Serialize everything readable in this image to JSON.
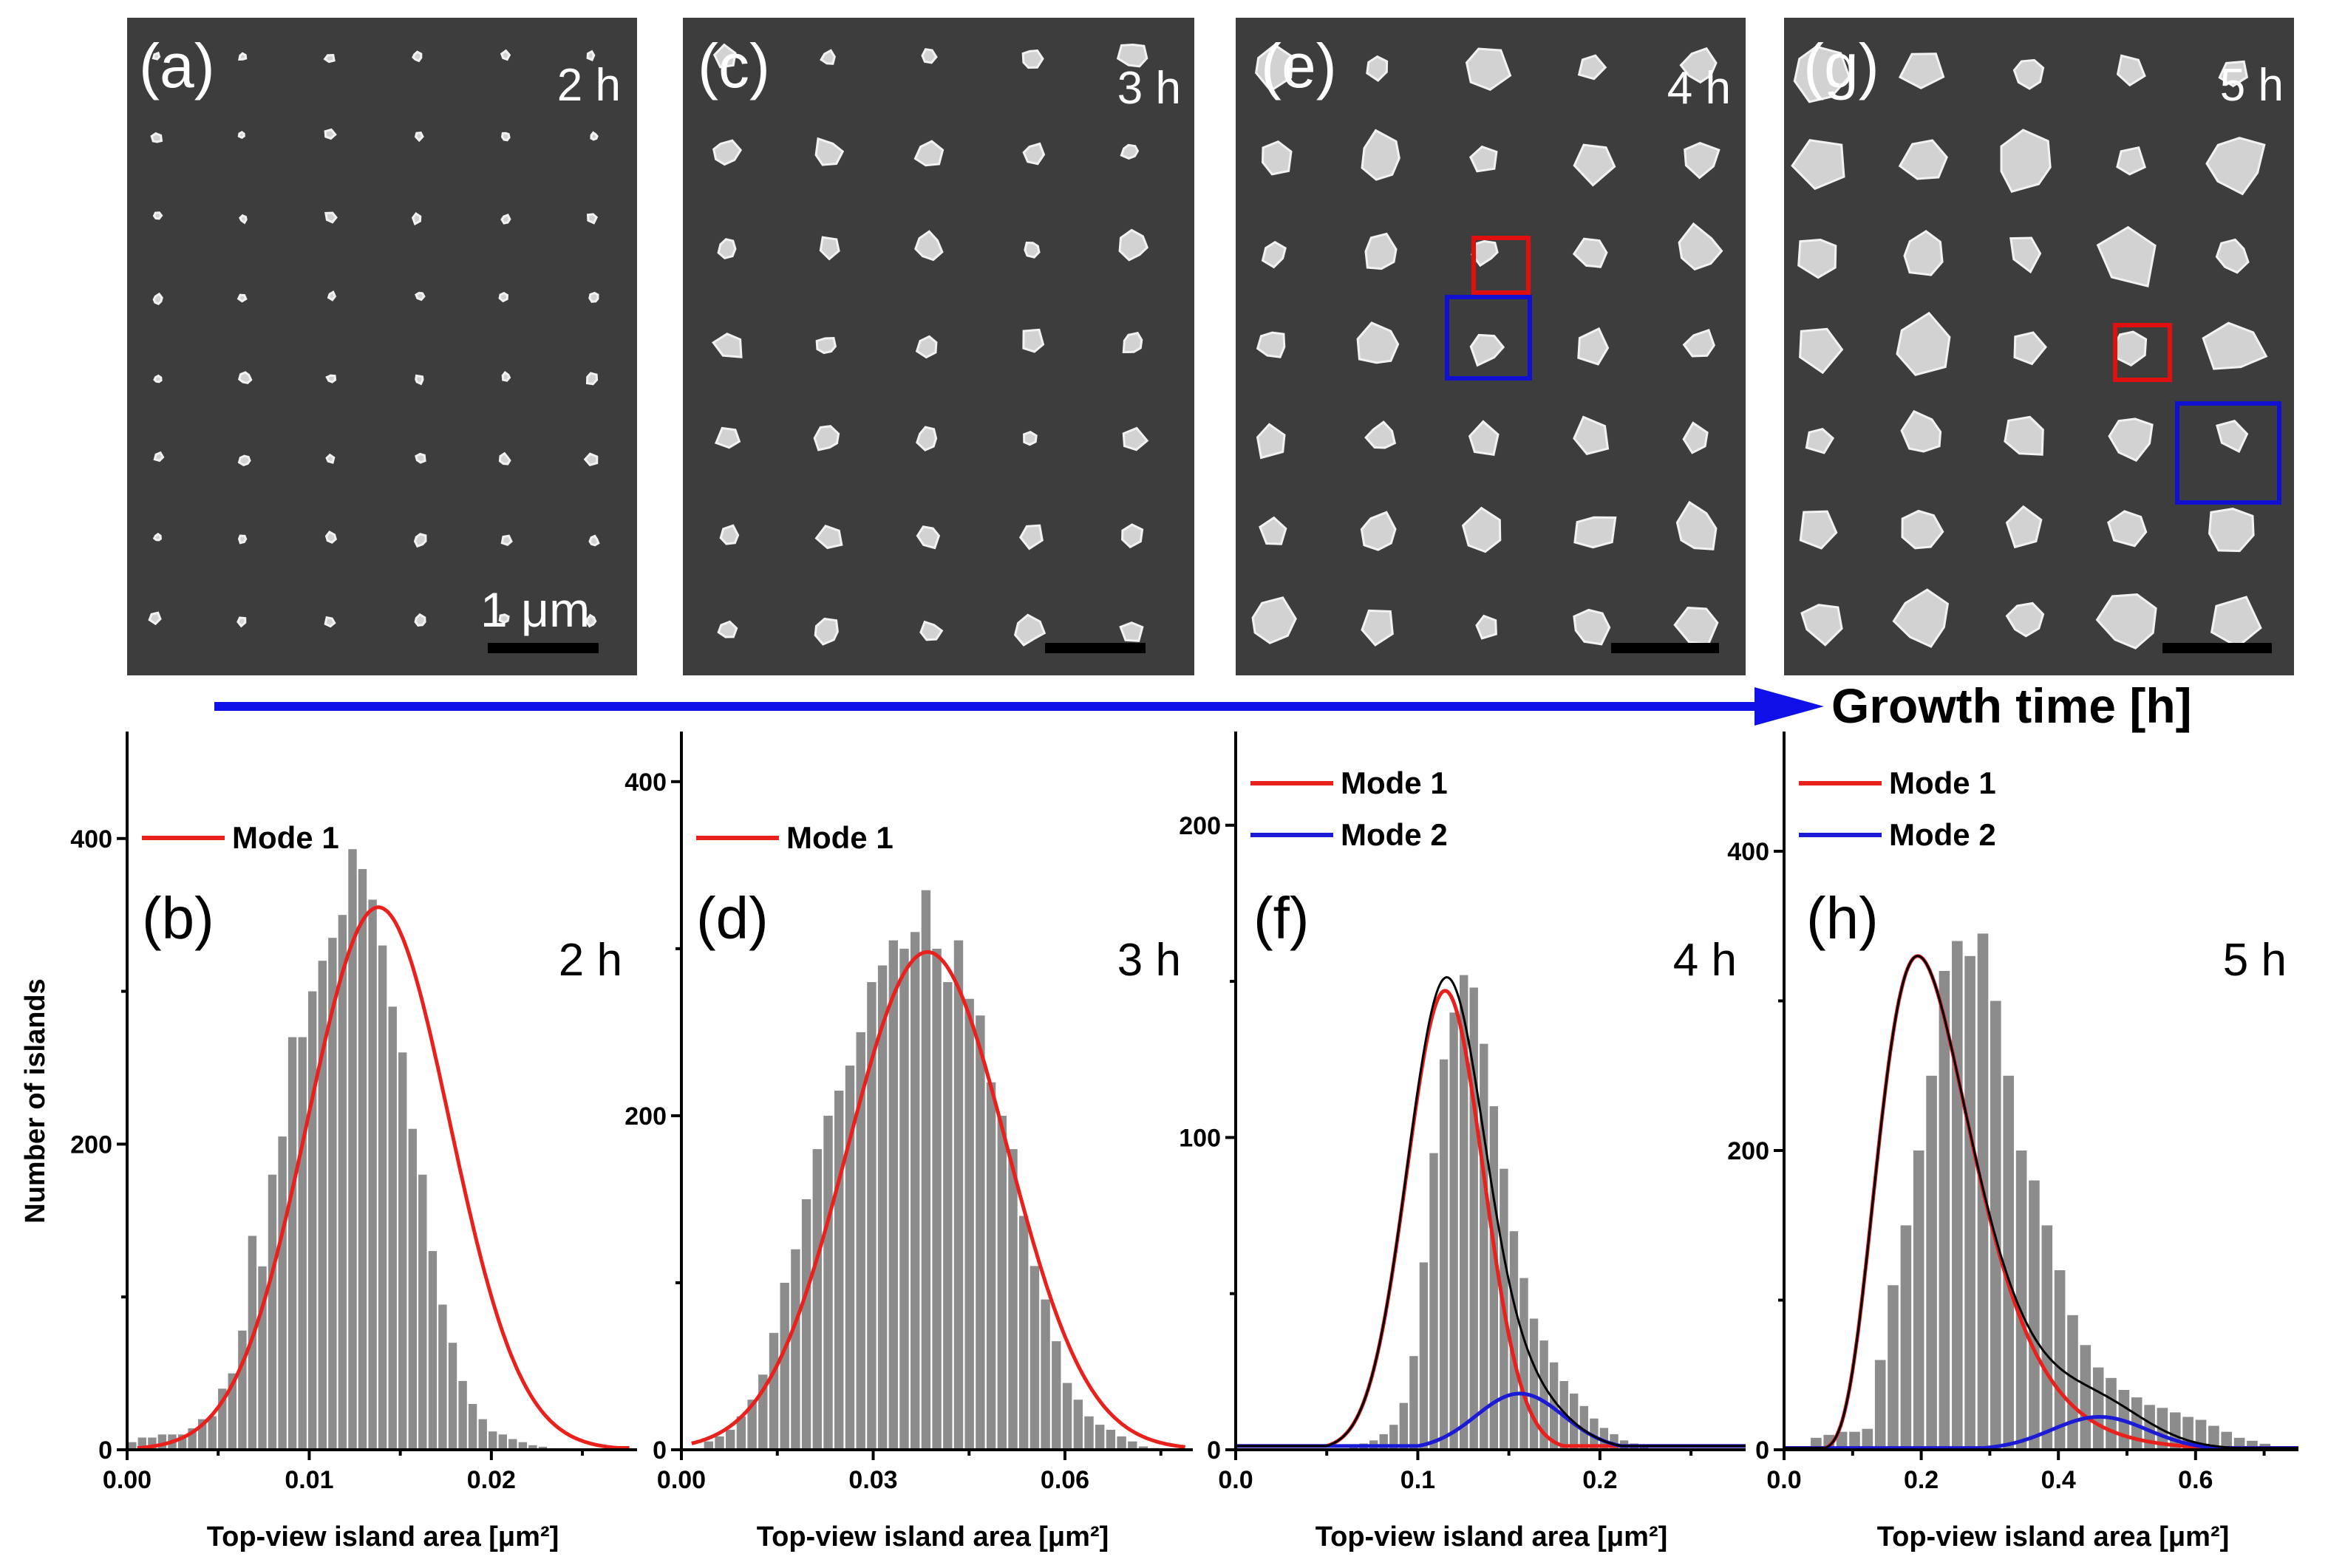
{
  "colors": {
    "mode1": "#e8211d",
    "mode2": "#1b1bd6",
    "total": "#000000",
    "bar": "#8c8c8c",
    "arrow": "#1010e8",
    "box_red": "#e01010",
    "box_blue": "#1010d0"
  },
  "sem_panels": [
    {
      "label": "(a)",
      "time": "2 h",
      "scalebar_label": "1 μm"
    },
    {
      "label": "(c)",
      "time": "3 h"
    },
    {
      "label": "(e)",
      "time": "4 h"
    },
    {
      "label": "(g)",
      "time": "5 h"
    }
  ],
  "arrow_label": "Growth time [h]",
  "y_axis_label": "Number of islands",
  "x_axis_label": "Top-view island area [μm²]",
  "chart_data": [
    {
      "type": "bar",
      "panel": "(b)",
      "time": "2 h",
      "title": "",
      "xlabel": "Top-view island area [μm²]",
      "ylabel": "Number of islands",
      "xlim": [
        0,
        0.028
      ],
      "ylim": [
        0,
        470
      ],
      "xticks": [
        0.0,
        0.01,
        0.02
      ],
      "xtick_labels": [
        "0.00",
        "0.01",
        "0.02"
      ],
      "yticks": [
        0,
        200,
        400
      ],
      "ytick_labels": [
        "0",
        "200",
        "400"
      ],
      "legend": [
        "Mode 1"
      ],
      "bin_start": 0.0,
      "bin_width": 0.00055,
      "values": [
        5,
        8,
        8,
        10,
        10,
        10,
        14,
        20,
        22,
        40,
        50,
        78,
        140,
        120,
        180,
        205,
        270,
        270,
        300,
        320,
        335,
        350,
        393,
        380,
        360,
        330,
        290,
        260,
        210,
        180,
        130,
        95,
        70,
        45,
        30,
        20,
        12,
        10,
        7,
        5,
        3,
        2,
        1,
        1,
        0,
        0,
        0,
        0,
        0,
        0,
        0
      ],
      "series": [
        {
          "name": "Mode 1",
          "kind": "gaussian",
          "amplitude": 355,
          "center": 0.0138,
          "sigma": 0.0039
        }
      ]
    },
    {
      "type": "bar",
      "panel": "(d)",
      "time": "3 h",
      "title": "",
      "xlabel": "Top-view island area [μm²]",
      "ylabel": "",
      "xlim": [
        0,
        0.08
      ],
      "ylim": [
        0,
        430
      ],
      "xticks": [
        0.0,
        0.03,
        0.06
      ],
      "xtick_labels": [
        "0.00",
        "0.03",
        "0.06"
      ],
      "yticks": [
        0,
        200,
        400
      ],
      "ytick_labels": [
        "0",
        "200",
        "400"
      ],
      "legend": [
        "Mode 1"
      ],
      "bin_start": 0.0,
      "bin_width": 0.0017,
      "values": [
        0,
        0,
        5,
        8,
        12,
        20,
        30,
        45,
        70,
        100,
        120,
        150,
        180,
        200,
        215,
        230,
        250,
        280,
        290,
        305,
        300,
        310,
        335,
        300,
        280,
        305,
        270,
        260,
        220,
        200,
        180,
        140,
        110,
        90,
        65,
        40,
        30,
        20,
        15,
        12,
        8,
        5,
        2,
        1,
        0,
        0,
        0
      ],
      "series": [
        {
          "name": "Mode 1",
          "kind": "gaussian",
          "amplitude": 298,
          "center": 0.0385,
          "sigma": 0.0125
        }
      ]
    },
    {
      "type": "bar",
      "panel": "(f)",
      "time": "4 h",
      "title": "",
      "xlabel": "Top-view island area [μm²]",
      "ylabel": "",
      "xlim": [
        0,
        0.28
      ],
      "ylim": [
        0,
        230
      ],
      "xticks": [
        0.0,
        0.1,
        0.2
      ],
      "xtick_labels": [
        "0.0",
        "0.1",
        "0.2"
      ],
      "yticks": [
        0,
        100,
        200
      ],
      "ytick_labels": [
        "0",
        "100",
        "200"
      ],
      "legend": [
        "Mode 1",
        "Mode 2"
      ],
      "bin_start": 0.062,
      "bin_width": 0.0055,
      "values": [
        1,
        2,
        3,
        5,
        8,
        15,
        30,
        60,
        95,
        125,
        140,
        152,
        148,
        130,
        110,
        90,
        70,
        55,
        42,
        35,
        28,
        22,
        18,
        14,
        10,
        7,
        5,
        3,
        2,
        1
      ],
      "series": [
        {
          "name": "Mode 1",
          "kind": "gaussian",
          "amplitude": 147,
          "center": 0.115,
          "sigma": 0.021
        },
        {
          "name": "Mode 2",
          "kind": "gaussian",
          "amplitude": 18,
          "center": 0.156,
          "sigma": 0.024
        },
        {
          "name": "Sum",
          "kind": "sum"
        }
      ]
    },
    {
      "type": "bar",
      "panel": "(h)",
      "time": "5 h",
      "title": "",
      "xlabel": "Top-view island area [μm²]",
      "ylabel": "",
      "xlim": [
        0,
        0.75
      ],
      "ylim": [
        0,
        480
      ],
      "xticks": [
        0.0,
        0.2,
        0.4,
        0.6
      ],
      "xtick_labels": [
        "0.0",
        "0.2",
        "0.4",
        "0.6"
      ],
      "yticks": [
        0,
        200,
        400
      ],
      "ytick_labels": [
        "0",
        "200",
        "400"
      ],
      "legend": [
        "Mode 1",
        "Mode 2"
      ],
      "bin_start": 0.0,
      "bin_width": 0.0187,
      "values": [
        0,
        0,
        8,
        10,
        12,
        12,
        14,
        60,
        110,
        150,
        200,
        250,
        320,
        340,
        330,
        345,
        300,
        250,
        200,
        180,
        150,
        120,
        90,
        70,
        55,
        48,
        40,
        35,
        30,
        28,
        25,
        22,
        20,
        16,
        12,
        8,
        6,
        4,
        2,
        1
      ],
      "series": [
        {
          "name": "Mode 1",
          "kind": "lognormal",
          "amplitude": 330,
          "mode": 0.195,
          "s": 0.35
        },
        {
          "name": "Mode 2",
          "kind": "gaussian",
          "amplitude": 22,
          "center": 0.46,
          "sigma": 0.07
        },
        {
          "name": "Sum",
          "kind": "sum"
        }
      ]
    }
  ]
}
